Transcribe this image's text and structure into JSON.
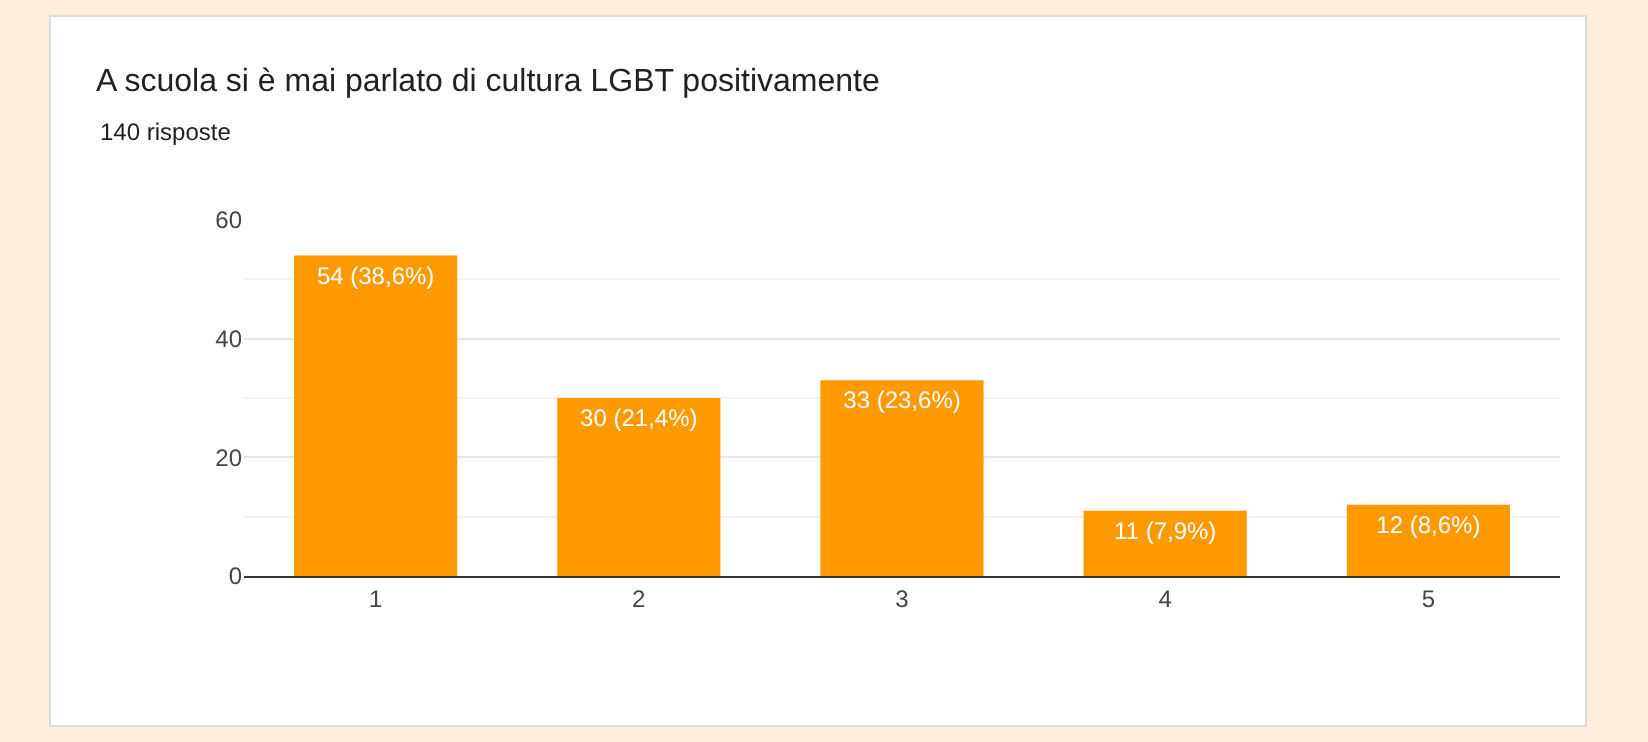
{
  "chart_data": {
    "type": "bar",
    "title": "A scuola si è mai parlato di cultura LGBT positivamente",
    "subtitle": "140 risposte",
    "categories": [
      "1",
      "2",
      "3",
      "4",
      "5"
    ],
    "values": [
      54,
      30,
      33,
      11,
      12
    ],
    "value_labels": [
      "54 (38,6%)",
      "30 (21,4%)",
      "33 (23,6%)",
      "11 (7,9%)",
      "12 (8,6%)"
    ],
    "color": "#ff9900",
    "ylim": [
      0,
      60
    ],
    "yticks": [
      0,
      20,
      40,
      60
    ],
    "grid": "y",
    "legend": false
  }
}
